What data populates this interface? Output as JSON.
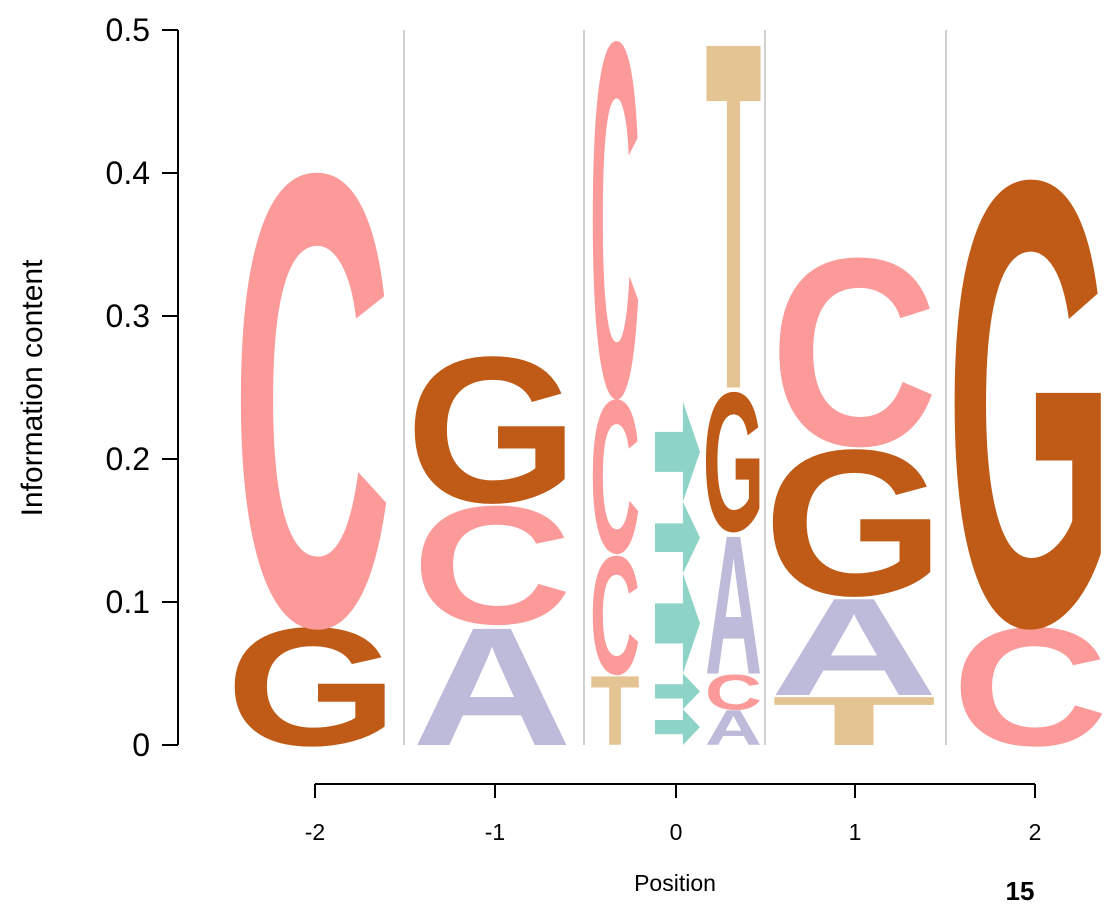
{
  "chart_data": {
    "type": "sequence-logo",
    "title": "",
    "xlabel": "Position",
    "ylabel": "Information content",
    "ylim": [
      0,
      0.5
    ],
    "yticks": [
      "0",
      "0.1",
      "0.2",
      "0.3",
      "0.4",
      "0.5"
    ],
    "columns": [
      {
        "position": "-2",
        "stack": [
          {
            "letter": "G",
            "height": 0.085
          },
          {
            "letter": "C",
            "height": 0.325
          }
        ]
      },
      {
        "position": "-1",
        "stack": [
          {
            "letter": "A",
            "height": 0.085
          },
          {
            "letter": "C",
            "height": 0.085
          },
          {
            "letter": "G",
            "height": 0.105
          }
        ]
      },
      {
        "position": "0",
        "sub_columns": [
          {
            "stack": [
              {
                "letter": "T",
                "height": 0.05
              },
              {
                "letter": "C",
                "height": 0.085
              },
              {
                "letter": "C",
                "height": 0.11
              },
              {
                "letter": "C",
                "height": 0.255
              }
            ]
          },
          {
            "stack": [
              {
                "letter": "→",
                "height": 0.025
              },
              {
                "letter": "→",
                "height": 0.025
              },
              {
                "letter": "→",
                "height": 0.07
              },
              {
                "letter": "→",
                "height": 0.05
              },
              {
                "letter": "→",
                "height": 0.07
              }
            ]
          },
          {
            "stack": [
              {
                "letter": "A",
                "height": 0.025
              },
              {
                "letter": "C",
                "height": 0.025
              },
              {
                "letter": "A",
                "height": 0.1
              },
              {
                "letter": "G",
                "height": 0.1
              },
              {
                "letter": "T",
                "height": 0.25
              }
            ]
          }
        ]
      },
      {
        "position": "1",
        "stack": [
          {
            "letter": "T",
            "height": 0.035
          },
          {
            "letter": "A",
            "height": 0.07
          },
          {
            "letter": "G",
            "height": 0.105
          },
          {
            "letter": "C",
            "height": 0.135
          }
        ]
      },
      {
        "position": "2",
        "stack": [
          {
            "letter": "C",
            "height": 0.085
          },
          {
            "letter": "G",
            "height": 0.32
          }
        ]
      }
    ],
    "colors": {
      "A": "#bebada",
      "C": "#fb9a99",
      "G": "#bf5b17",
      "T": "#e5c494",
      "→": "#8dd3c7"
    },
    "grid": "vertical separators between positions",
    "legend": "none"
  },
  "page_number": "15"
}
